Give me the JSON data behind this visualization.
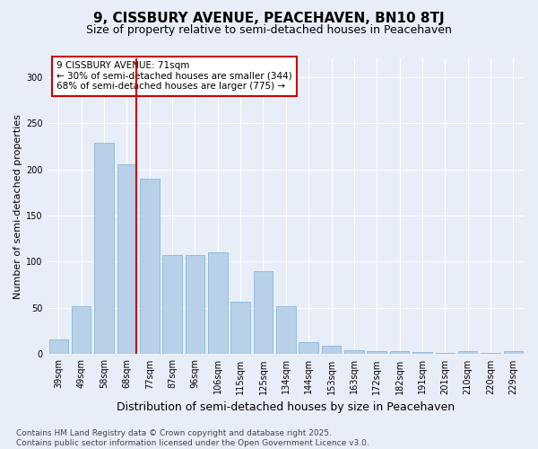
{
  "title": "9, CISSBURY AVENUE, PEACEHAVEN, BN10 8TJ",
  "subtitle": "Size of property relative to semi-detached houses in Peacehaven",
  "xlabel": "Distribution of semi-detached houses by size in Peacehaven",
  "ylabel": "Number of semi-detached properties",
  "categories": [
    "39sqm",
    "49sqm",
    "58sqm",
    "68sqm",
    "77sqm",
    "87sqm",
    "96sqm",
    "106sqm",
    "115sqm",
    "125sqm",
    "134sqm",
    "144sqm",
    "153sqm",
    "163sqm",
    "172sqm",
    "182sqm",
    "191sqm",
    "201sqm",
    "210sqm",
    "220sqm",
    "229sqm"
  ],
  "values": [
    16,
    52,
    229,
    205,
    190,
    107,
    107,
    110,
    57,
    90,
    52,
    13,
    9,
    4,
    3,
    3,
    2,
    1,
    3,
    1,
    3
  ],
  "bar_color": "#b8d0e8",
  "bar_edge_color": "#7aaed6",
  "vline_x_index": 3,
  "vline_color": "#cc0000",
  "annotation_text": "9 CISSBURY AVENUE: 71sqm\n← 30% of semi-detached houses are smaller (344)\n68% of semi-detached houses are larger (775) →",
  "annotation_box_facecolor": "#ffffff",
  "annotation_box_edgecolor": "#cc0000",
  "ylim": [
    0,
    320
  ],
  "yticks": [
    0,
    50,
    100,
    150,
    200,
    250,
    300
  ],
  "plot_bg_color": "#e8eef8",
  "fig_bg_color": "#e8eef8",
  "footer_text": "Contains HM Land Registry data © Crown copyright and database right 2025.\nContains public sector information licensed under the Open Government Licence v3.0.",
  "title_fontsize": 11,
  "subtitle_fontsize": 9,
  "xlabel_fontsize": 9,
  "ylabel_fontsize": 8,
  "tick_fontsize": 7,
  "annotation_fontsize": 7.5,
  "footer_fontsize": 6.5
}
